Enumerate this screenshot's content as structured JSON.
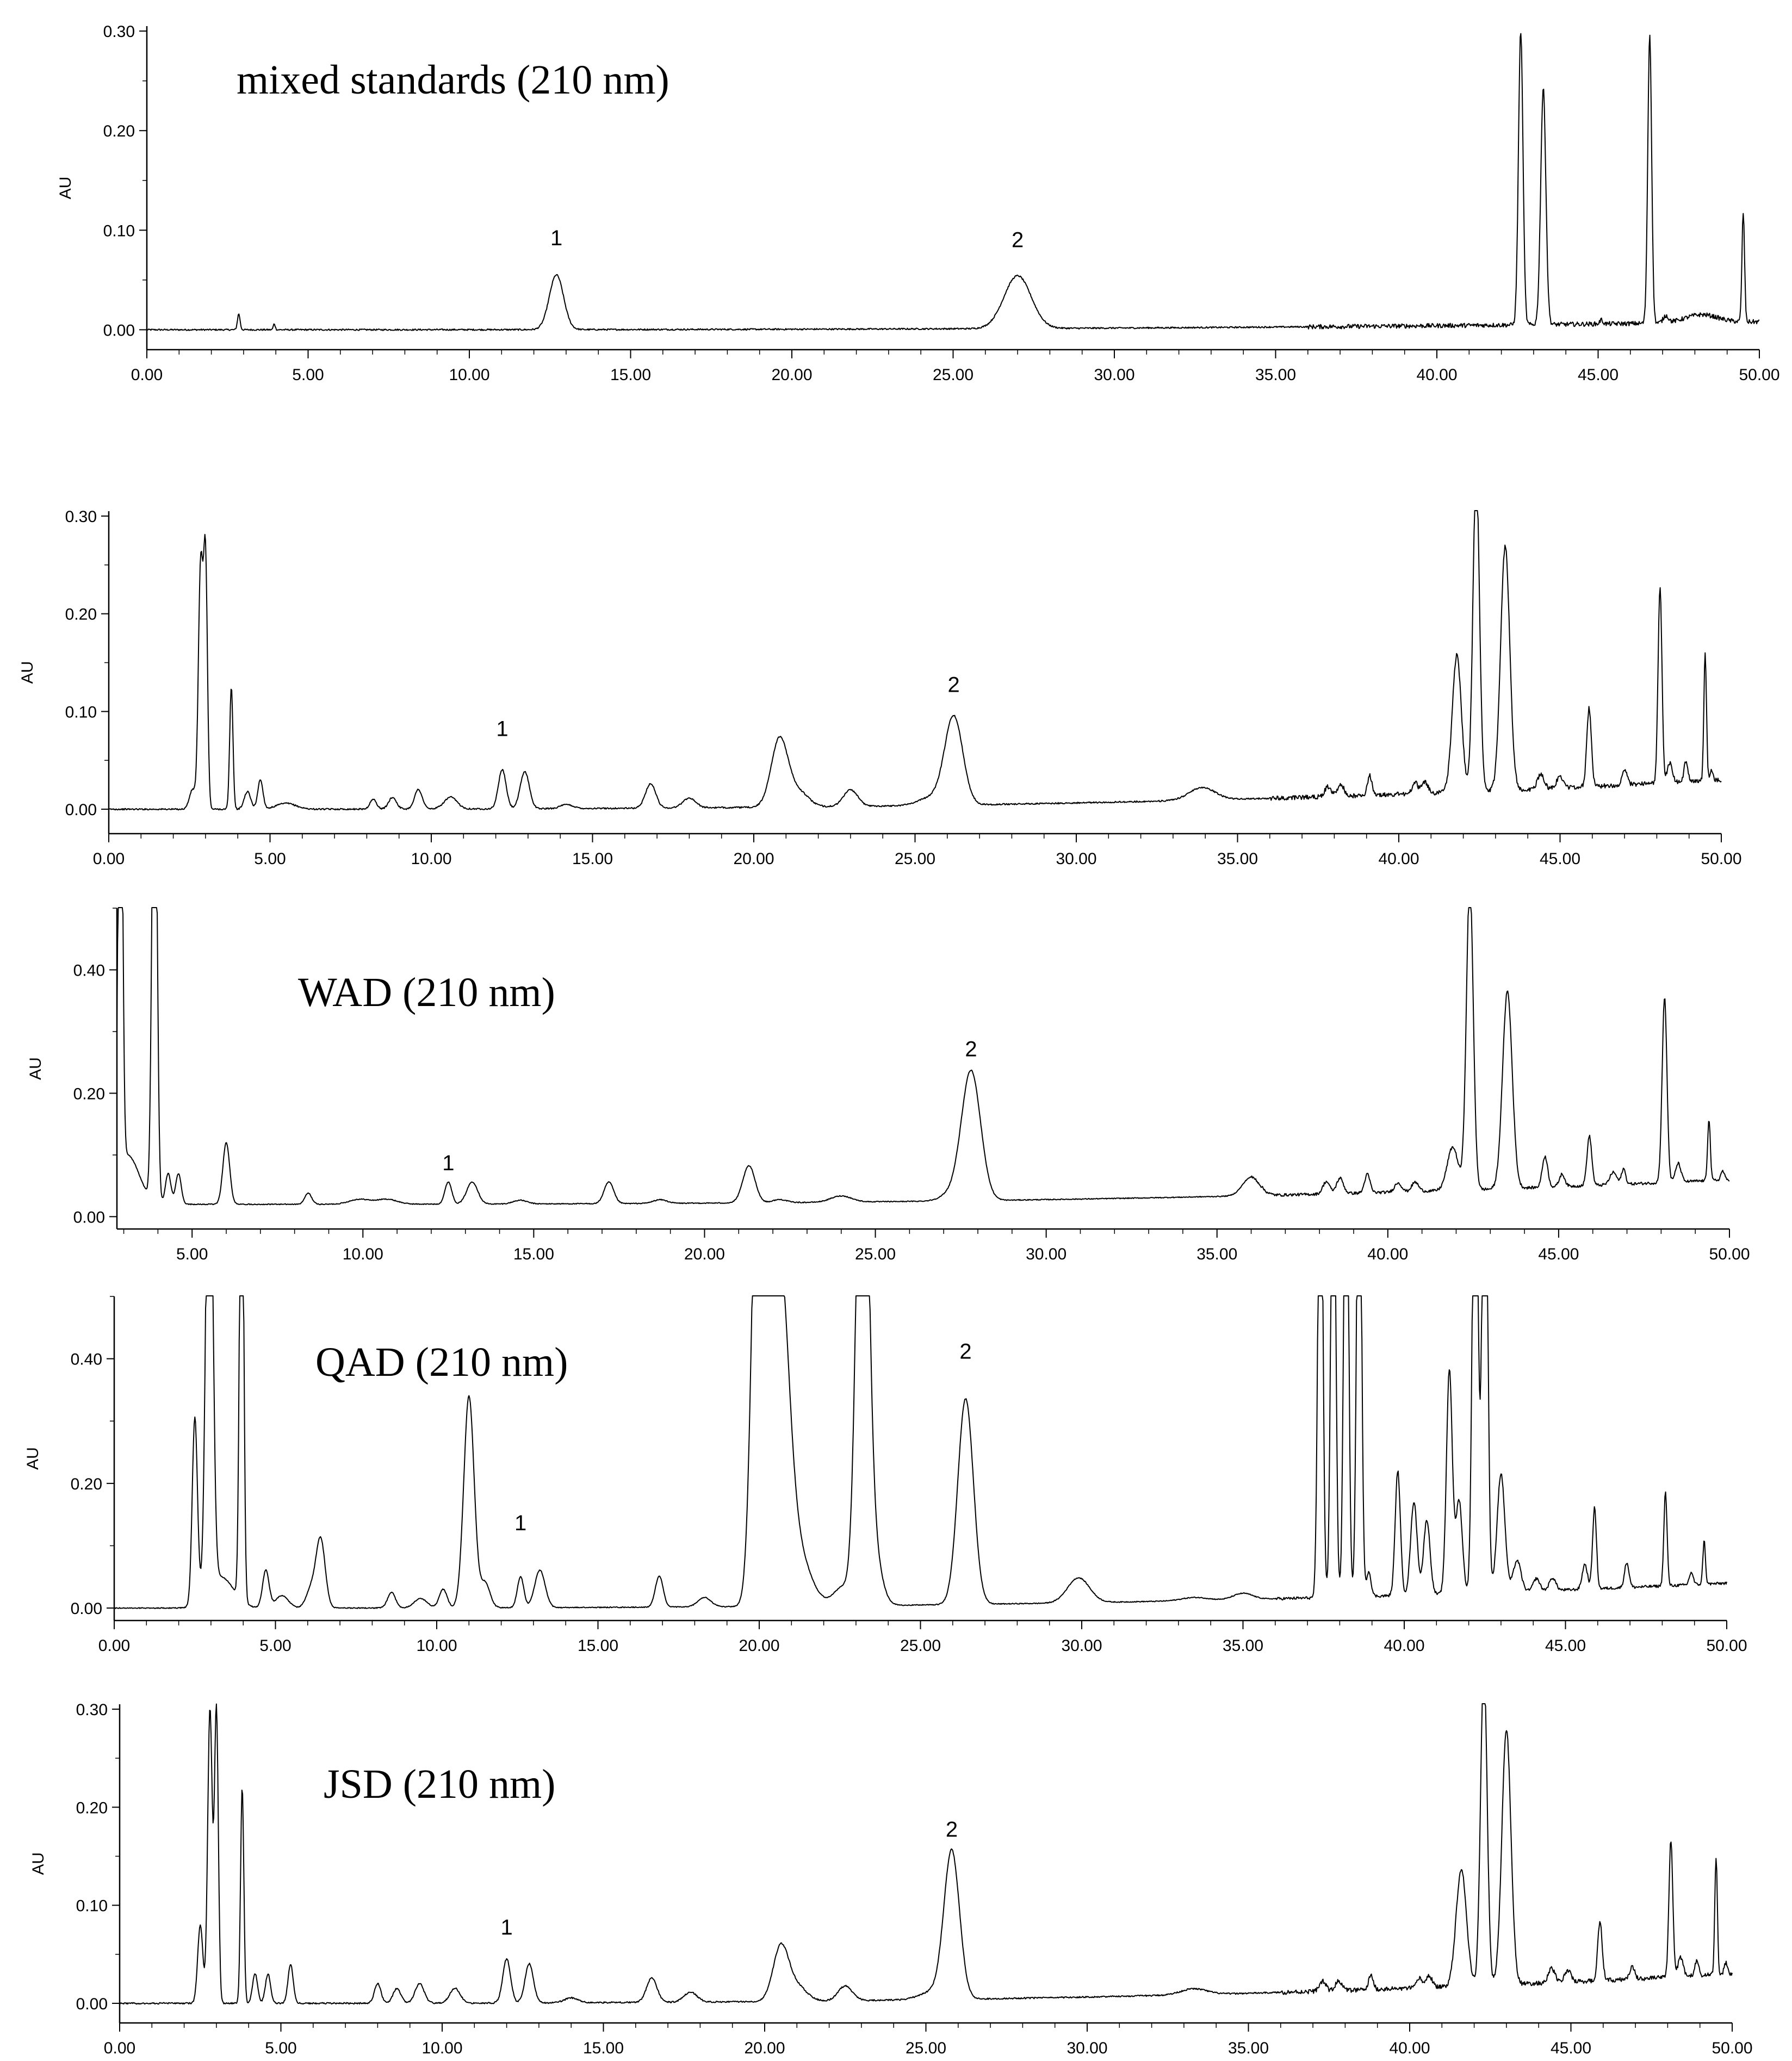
{
  "chart_data": [
    {
      "type": "line",
      "title": "mixed standards (210 nm)",
      "xlabel": "",
      "ylabel": "AU",
      "xlim": [
        0,
        50
      ],
      "ylim": [
        -0.02,
        0.305
      ],
      "xticks": [
        "0.00",
        "5.00",
        "10.00",
        "15.00",
        "20.00",
        "25.00",
        "30.00",
        "35.00",
        "40.00",
        "45.00",
        "50.00"
      ],
      "yticks": [
        {
          "v": 0,
          "label": "0.00"
        },
        {
          "v": 0.1,
          "label": "0.10"
        },
        {
          "v": 0.2,
          "label": "0.20"
        },
        {
          "v": 0.3,
          "label": "0.30"
        }
      ],
      "baseline": {
        "start": 0.0,
        "end": 0.008
      },
      "peaks": [
        [
          2.85,
          0.016,
          0.04
        ],
        [
          3.95,
          0.006,
          0.03
        ],
        [
          12.7,
          0.055,
          0.22
        ],
        [
          27.0,
          0.053,
          0.42
        ],
        [
          42.6,
          0.295,
          0.07
        ],
        [
          43.3,
          0.237,
          0.08
        ],
        [
          45.1,
          0.004,
          0.05
        ],
        [
          46.6,
          0.29,
          0.06
        ],
        [
          47.1,
          0.007,
          0.08
        ],
        [
          48.2,
          0.008,
          0.5
        ],
        [
          49.5,
          0.11,
          0.04
        ]
      ],
      "peak_labels": [
        {
          "text": "1",
          "x": 12.7,
          "y": 0.085
        },
        {
          "text": "2",
          "x": 27.0,
          "y": 0.083
        }
      ]
    },
    {
      "type": "line",
      "title": "",
      "xlabel": "",
      "ylabel": "AU",
      "xlim": [
        0,
        50
      ],
      "ylim": [
        -0.025,
        0.305
      ],
      "xticks": [
        "0.00",
        "5.00",
        "10.00",
        "15.00",
        "20.00",
        "25.00",
        "30.00",
        "35.00",
        "40.00",
        "45.00",
        "50.00"
      ],
      "yticks": [
        {
          "v": 0,
          "label": "0.00"
        },
        {
          "v": 0.1,
          "label": "0.10"
        },
        {
          "v": 0.2,
          "label": "0.20"
        },
        {
          "v": 0.3,
          "label": "0.30"
        }
      ],
      "baseline": {
        "start": 0.0,
        "end": 0.03
      },
      "peaks": [
        [
          2.6,
          0.02,
          0.1
        ],
        [
          2.85,
          0.25,
          0.07
        ],
        [
          3.0,
          0.25,
          0.06
        ],
        [
          3.8,
          0.125,
          0.05
        ],
        [
          4.3,
          0.018,
          0.1
        ],
        [
          4.7,
          0.03,
          0.08
        ],
        [
          5.5,
          0.006,
          0.3
        ],
        [
          8.2,
          0.01,
          0.1
        ],
        [
          8.8,
          0.012,
          0.12
        ],
        [
          9.6,
          0.02,
          0.12
        ],
        [
          10.6,
          0.012,
          0.2
        ],
        [
          12.2,
          0.04,
          0.12
        ],
        [
          12.9,
          0.038,
          0.14
        ],
        [
          14.2,
          0.004,
          0.2
        ],
        [
          16.8,
          0.025,
          0.16
        ],
        [
          18.0,
          0.01,
          0.2
        ],
        [
          20.8,
          0.07,
          0.26
        ],
        [
          21.4,
          0.015,
          0.3
        ],
        [
          23.0,
          0.017,
          0.22
        ],
        [
          26.2,
          0.09,
          0.28
        ],
        [
          25.5,
          0.008,
          0.4
        ],
        [
          33.9,
          0.013,
          0.4
        ],
        [
          37.8,
          0.01,
          0.1
        ],
        [
          38.2,
          0.012,
          0.1
        ],
        [
          39.1,
          0.02,
          0.07
        ],
        [
          40.5,
          0.012,
          0.08
        ],
        [
          40.8,
          0.012,
          0.1
        ],
        [
          41.8,
          0.14,
          0.14
        ],
        [
          42.4,
          0.33,
          0.1
        ],
        [
          43.3,
          0.25,
          0.14
        ],
        [
          44.4,
          0.015,
          0.1
        ],
        [
          45.0,
          0.012,
          0.1
        ],
        [
          45.9,
          0.08,
          0.07
        ],
        [
          47.0,
          0.015,
          0.08
        ],
        [
          48.1,
          0.2,
          0.06
        ],
        [
          48.4,
          0.02,
          0.08
        ],
        [
          48.9,
          0.02,
          0.06
        ],
        [
          49.5,
          0.13,
          0.04
        ],
        [
          49.7,
          0.01,
          0.05
        ]
      ],
      "peak_labels": [
        {
          "text": "1",
          "x": 12.2,
          "y": 0.075
        },
        {
          "text": "2",
          "x": 26.2,
          "y": 0.12
        }
      ]
    },
    {
      "type": "line",
      "title": "WAD (210 nm)",
      "xlabel": "",
      "ylabel": "AU",
      "xlim": [
        2.8,
        50
      ],
      "ylim": [
        -0.02,
        0.5
      ],
      "xticks": [
        "5.00",
        "10.00",
        "15.00",
        "20.00",
        "25.00",
        "30.00",
        "35.00",
        "40.00",
        "45.00",
        "50.00"
      ],
      "yticks": [
        {
          "v": 0,
          "label": "0.00"
        },
        {
          "v": 0.2,
          "label": "0.20"
        },
        {
          "v": 0.4,
          "label": "0.40"
        }
      ],
      "baseline": {
        "start": 0.02,
        "end": 0.06
      },
      "peaks": [
        [
          2.9,
          0.9,
          0.06
        ],
        [
          3.1,
          0.08,
          0.35
        ],
        [
          3.9,
          0.9,
          0.07
        ],
        [
          4.3,
          0.05,
          0.08
        ],
        [
          4.6,
          0.05,
          0.08
        ],
        [
          6.0,
          0.1,
          0.1
        ],
        [
          8.4,
          0.018,
          0.1
        ],
        [
          9.9,
          0.008,
          0.3
        ],
        [
          10.7,
          0.008,
          0.3
        ],
        [
          12.5,
          0.036,
          0.1
        ],
        [
          13.2,
          0.036,
          0.16
        ],
        [
          14.6,
          0.006,
          0.2
        ],
        [
          17.2,
          0.035,
          0.14
        ],
        [
          18.7,
          0.006,
          0.2
        ],
        [
          21.3,
          0.06,
          0.18
        ],
        [
          22.2,
          0.005,
          0.2
        ],
        [
          24.0,
          0.01,
          0.3
        ],
        [
          27.8,
          0.21,
          0.28
        ],
        [
          27.2,
          0.01,
          0.3
        ],
        [
          36.0,
          0.03,
          0.25
        ],
        [
          38.2,
          0.02,
          0.1
        ],
        [
          38.6,
          0.025,
          0.1
        ],
        [
          39.4,
          0.03,
          0.08
        ],
        [
          40.3,
          0.015,
          0.1
        ],
        [
          40.8,
          0.015,
          0.1
        ],
        [
          41.9,
          0.07,
          0.16
        ],
        [
          42.4,
          0.5,
          0.1
        ],
        [
          43.5,
          0.32,
          0.14
        ],
        [
          44.6,
          0.05,
          0.08
        ],
        [
          45.1,
          0.02,
          0.08
        ],
        [
          45.9,
          0.08,
          0.07
        ],
        [
          46.6,
          0.02,
          0.1
        ],
        [
          46.9,
          0.025,
          0.06
        ],
        [
          48.1,
          0.3,
          0.07
        ],
        [
          48.5,
          0.03,
          0.08
        ],
        [
          49.4,
          0.1,
          0.04
        ],
        [
          49.8,
          0.015,
          0.05
        ]
      ],
      "peak_labels": [
        {
          "text": "1",
          "x": 12.5,
          "y": 0.075
        },
        {
          "text": "2",
          "x": 27.8,
          "y": 0.26
        }
      ]
    },
    {
      "type": "line",
      "title": "QAD (210 nm)",
      "xlabel": "",
      "ylabel": "AU",
      "xlim": [
        0,
        50
      ],
      "ylim": [
        -0.02,
        0.5
      ],
      "xticks": [
        "0.00",
        "5.00",
        "10.00",
        "15.00",
        "20.00",
        "25.00",
        "30.00",
        "35.00",
        "40.00",
        "45.00",
        "50.00"
      ],
      "yticks": [
        {
          "v": 0,
          "label": "0.00"
        },
        {
          "v": 0.2,
          "label": "0.20"
        },
        {
          "v": 0.4,
          "label": "0.40"
        }
      ],
      "baseline": {
        "start": 0.0,
        "end": 0.04
      },
      "peaks": [
        [
          2.5,
          0.3,
          0.08
        ],
        [
          2.95,
          0.9,
          0.1
        ],
        [
          3.3,
          0.05,
          0.4
        ],
        [
          3.95,
          0.9,
          0.06
        ],
        [
          4.7,
          0.06,
          0.1
        ],
        [
          5.2,
          0.02,
          0.2
        ],
        [
          6.1,
          0.03,
          0.15
        ],
        [
          6.4,
          0.11,
          0.14
        ],
        [
          8.6,
          0.025,
          0.12
        ],
        [
          9.5,
          0.015,
          0.2
        ],
        [
          10.2,
          0.03,
          0.12
        ],
        [
          11.0,
          0.34,
          0.16
        ],
        [
          11.5,
          0.04,
          0.15
        ],
        [
          12.6,
          0.05,
          0.1
        ],
        [
          13.2,
          0.06,
          0.16
        ],
        [
          16.9,
          0.05,
          0.12
        ],
        [
          18.3,
          0.015,
          0.2
        ],
        [
          20.0,
          0.9,
          0.2
        ],
        [
          20.6,
          0.55,
          0.3
        ],
        [
          21.2,
          0.08,
          0.4
        ],
        [
          22.6,
          0.03,
          0.3
        ],
        [
          23.2,
          0.9,
          0.18
        ],
        [
          23.5,
          0.1,
          0.25
        ],
        [
          26.4,
          0.33,
          0.24
        ],
        [
          29.9,
          0.04,
          0.34
        ],
        [
          33.5,
          0.005,
          0.4
        ],
        [
          35.0,
          0.01,
          0.3
        ],
        [
          37.4,
          0.9,
          0.07
        ],
        [
          37.8,
          0.9,
          0.07
        ],
        [
          38.2,
          0.9,
          0.07
        ],
        [
          38.6,
          0.9,
          0.07
        ],
        [
          38.9,
          0.04,
          0.07
        ],
        [
          39.8,
          0.2,
          0.08
        ],
        [
          40.3,
          0.15,
          0.1
        ],
        [
          40.7,
          0.12,
          0.1
        ],
        [
          41.4,
          0.36,
          0.09
        ],
        [
          41.7,
          0.15,
          0.1
        ],
        [
          42.2,
          0.9,
          0.08
        ],
        [
          42.5,
          0.9,
          0.08
        ],
        [
          43.0,
          0.19,
          0.12
        ],
        [
          43.5,
          0.05,
          0.12
        ],
        [
          44.1,
          0.02,
          0.1
        ],
        [
          44.6,
          0.02,
          0.1
        ],
        [
          45.6,
          0.04,
          0.08
        ],
        [
          45.9,
          0.13,
          0.06
        ],
        [
          46.9,
          0.04,
          0.07
        ],
        [
          48.1,
          0.15,
          0.05
        ],
        [
          48.9,
          0.02,
          0.06
        ],
        [
          49.3,
          0.07,
          0.04
        ]
      ],
      "peak_labels": [
        {
          "text": "1",
          "x": 12.6,
          "y": 0.125
        },
        {
          "text": "2",
          "x": 26.4,
          "y": 0.4
        }
      ]
    },
    {
      "type": "line",
      "title": "JSD (210 nm)",
      "xlabel": "",
      "ylabel": "AU",
      "xlim": [
        0,
        50
      ],
      "ylim": [
        -0.02,
        0.305
      ],
      "xticks": [
        "0.00",
        "5.00",
        "10.00",
        "15.00",
        "20.00",
        "25.00",
        "30.00",
        "35.00",
        "40.00",
        "45.00",
        "50.00"
      ],
      "yticks": [
        {
          "v": 0,
          "label": "0.00"
        },
        {
          "v": 0.1,
          "label": "0.10"
        },
        {
          "v": 0.2,
          "label": "0.20"
        },
        {
          "v": 0.3,
          "label": "0.30"
        }
      ],
      "baseline": {
        "start": 0.0,
        "end": 0.03
      },
      "peaks": [
        [
          2.5,
          0.08,
          0.08
        ],
        [
          2.8,
          0.3,
          0.07
        ],
        [
          3.0,
          0.3,
          0.06
        ],
        [
          3.8,
          0.22,
          0.05
        ],
        [
          4.2,
          0.03,
          0.08
        ],
        [
          4.6,
          0.03,
          0.08
        ],
        [
          5.3,
          0.04,
          0.08
        ],
        [
          8.0,
          0.02,
          0.1
        ],
        [
          8.6,
          0.015,
          0.12
        ],
        [
          9.3,
          0.02,
          0.14
        ],
        [
          10.4,
          0.015,
          0.16
        ],
        [
          12.0,
          0.045,
          0.12
        ],
        [
          12.7,
          0.04,
          0.13
        ],
        [
          14.0,
          0.005,
          0.2
        ],
        [
          16.5,
          0.025,
          0.16
        ],
        [
          17.7,
          0.01,
          0.2
        ],
        [
          20.5,
          0.055,
          0.24
        ],
        [
          21.0,
          0.015,
          0.3
        ],
        [
          22.5,
          0.015,
          0.22
        ],
        [
          25.8,
          0.15,
          0.24
        ],
        [
          25.2,
          0.008,
          0.4
        ],
        [
          33.3,
          0.006,
          0.4
        ],
        [
          37.3,
          0.01,
          0.1
        ],
        [
          37.8,
          0.01,
          0.1
        ],
        [
          38.8,
          0.015,
          0.07
        ],
        [
          40.3,
          0.01,
          0.08
        ],
        [
          40.6,
          0.012,
          0.1
        ],
        [
          41.6,
          0.12,
          0.16
        ],
        [
          42.3,
          0.33,
          0.1
        ],
        [
          43.0,
          0.26,
          0.14
        ],
        [
          44.4,
          0.015,
          0.1
        ],
        [
          44.9,
          0.012,
          0.1
        ],
        [
          45.9,
          0.06,
          0.07
        ],
        [
          46.9,
          0.012,
          0.08
        ],
        [
          48.1,
          0.14,
          0.06
        ],
        [
          48.4,
          0.02,
          0.08
        ],
        [
          48.9,
          0.015,
          0.06
        ],
        [
          49.5,
          0.12,
          0.04
        ],
        [
          49.8,
          0.012,
          0.05
        ]
      ],
      "peak_labels": [
        {
          "text": "1",
          "x": 12.0,
          "y": 0.07
        },
        {
          "text": "2",
          "x": 25.8,
          "y": 0.17
        }
      ]
    }
  ]
}
